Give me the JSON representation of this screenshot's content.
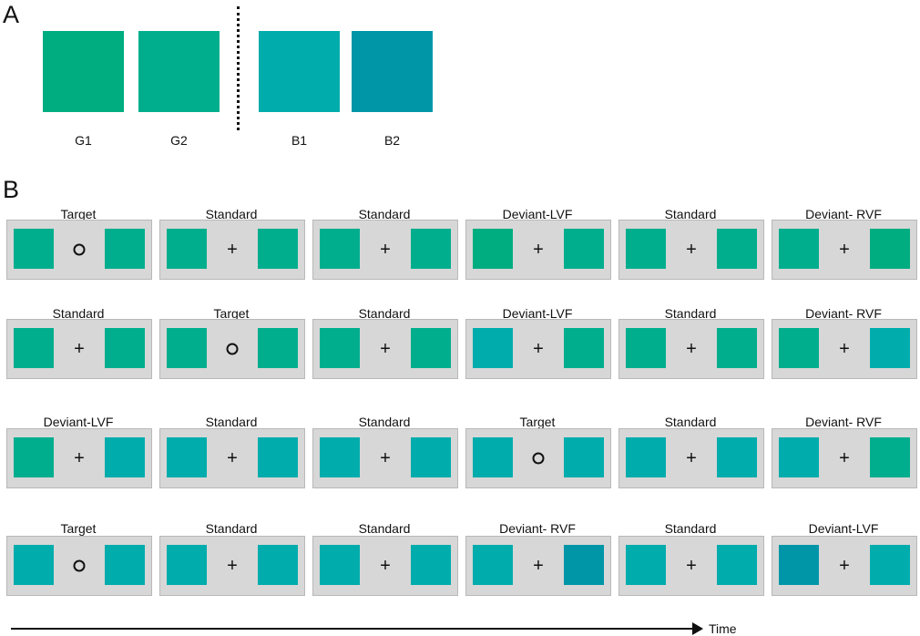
{
  "panel_a": {
    "letter": "A",
    "stimuli": [
      {
        "label": "G1",
        "color": "#00ad80"
      },
      {
        "label": "G2",
        "color": "#00ae8e"
      },
      {
        "label": "B1",
        "color": "#00acac"
      },
      {
        "label": "B2",
        "color": "#0096a8"
      }
    ]
  },
  "panel_b": {
    "letter": "B",
    "rows": [
      [
        {
          "label": "Target",
          "fixation": "circle",
          "left": "G2",
          "right": "G2"
        },
        {
          "label": "Standard",
          "fixation": "plus",
          "left": "G2",
          "right": "G2"
        },
        {
          "label": "Standard",
          "fixation": "plus",
          "left": "G2",
          "right": "G2"
        },
        {
          "label": "Deviant-LVF",
          "fixation": "plus",
          "left": "G1",
          "right": "G2"
        },
        {
          "label": "Standard",
          "fixation": "plus",
          "left": "G2",
          "right": "G2"
        },
        {
          "label": "Deviant- RVF",
          "fixation": "plus",
          "left": "G2",
          "right": "G1"
        }
      ],
      [
        {
          "label": "Standard",
          "fixation": "plus",
          "left": "G2",
          "right": "G2"
        },
        {
          "label": "Target",
          "fixation": "circle",
          "left": "G2",
          "right": "G2"
        },
        {
          "label": "Standard",
          "fixation": "plus",
          "left": "G2",
          "right": "G2"
        },
        {
          "label": "Deviant-LVF",
          "fixation": "plus",
          "left": "B1",
          "right": "G2"
        },
        {
          "label": "Standard",
          "fixation": "plus",
          "left": "G2",
          "right": "G2"
        },
        {
          "label": "Deviant- RVF",
          "fixation": "plus",
          "left": "G2",
          "right": "B1"
        }
      ],
      [
        {
          "label": "Deviant-LVF",
          "fixation": "plus",
          "left": "G2",
          "right": "B1"
        },
        {
          "label": "Standard",
          "fixation": "plus",
          "left": "B1",
          "right": "B1"
        },
        {
          "label": "Standard",
          "fixation": "plus",
          "left": "B1",
          "right": "B1"
        },
        {
          "label": "Target",
          "fixation": "circle",
          "left": "B1",
          "right": "B1"
        },
        {
          "label": "Standard",
          "fixation": "plus",
          "left": "B1",
          "right": "B1"
        },
        {
          "label": "Deviant- RVF",
          "fixation": "plus",
          "left": "B1",
          "right": "G2"
        }
      ],
      [
        {
          "label": "Target",
          "fixation": "circle",
          "left": "B1",
          "right": "B1"
        },
        {
          "label": "Standard",
          "fixation": "plus",
          "left": "B1",
          "right": "B1"
        },
        {
          "label": "Standard",
          "fixation": "plus",
          "left": "B1",
          "right": "B1"
        },
        {
          "label": "Deviant- RVF",
          "fixation": "plus",
          "left": "B1",
          "right": "B2"
        },
        {
          "label": "Standard",
          "fixation": "plus",
          "left": "B1",
          "right": "B1"
        },
        {
          "label": "Deviant-LVF",
          "fixation": "plus",
          "left": "B2",
          "right": "B1"
        }
      ]
    ],
    "fixation_plus": "+",
    "axis_label": "Time"
  }
}
